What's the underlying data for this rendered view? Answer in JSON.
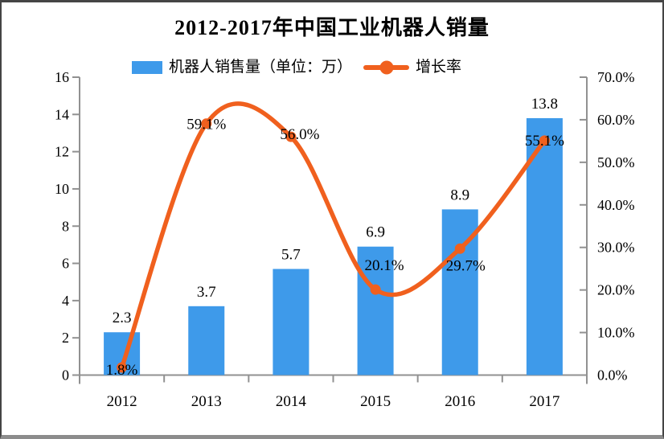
{
  "title": "2012-2017年中国工业机器人销量",
  "legend": {
    "bar": {
      "label": "机器人销售量（单位：万）"
    },
    "line": {
      "label": "增长率"
    }
  },
  "colors": {
    "bar": "#3E9AEA",
    "line": "#F0601E",
    "axis": "#919191",
    "text": "#000000",
    "background": "#FFFFFF",
    "frame_border": "#454545"
  },
  "chart_data": {
    "type": "combo",
    "title": "2012-2017年中国工业机器人销量",
    "categories": [
      "2012",
      "2013",
      "2014",
      "2015",
      "2016",
      "2017"
    ],
    "series": [
      {
        "name": "机器人销售量（单位：万）",
        "type": "bar",
        "axis": "left",
        "color": "#3E9AEA",
        "values": [
          2.3,
          3.7,
          5.7,
          6.9,
          8.9,
          13.8
        ],
        "labels": [
          "2.3",
          "3.7",
          "5.7",
          "6.9",
          "8.9",
          "13.8"
        ]
      },
      {
        "name": "增长率",
        "type": "line",
        "axis": "right",
        "color": "#F0601E",
        "smooth": true,
        "marker": "circle",
        "values": [
          1.8,
          59.1,
          56.0,
          20.1,
          29.7,
          55.1
        ],
        "labels": [
          "1.8%",
          "59.1%",
          "56.0%",
          "20.1%",
          "29.7%",
          "55.1%"
        ]
      }
    ],
    "left_axis": {
      "min": 0,
      "max": 16,
      "step": 2,
      "tick_labels": [
        "0",
        "2",
        "4",
        "6",
        "8",
        "10",
        "12",
        "14",
        "16"
      ]
    },
    "right_axis": {
      "min": 0,
      "max": 70,
      "step": 10,
      "tick_labels": [
        "0.0%",
        "10.0%",
        "20.0%",
        "30.0%",
        "40.0%",
        "50.0%",
        "60.0%",
        "70.0%"
      ]
    },
    "grid": false,
    "legend_position": "top"
  }
}
